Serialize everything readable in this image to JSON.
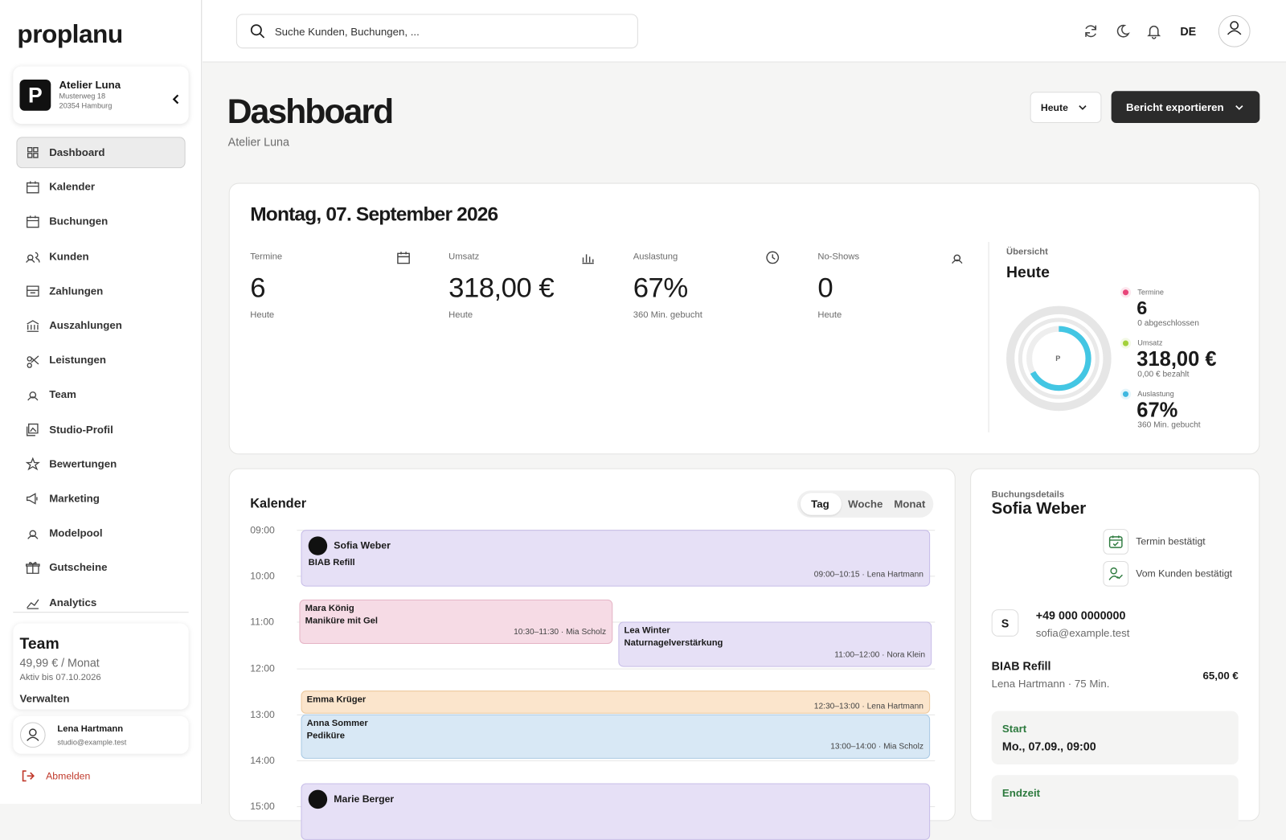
{
  "brand": "proplanu",
  "studio": {
    "logo": "P",
    "name": "Atelier Luna",
    "street": "Musterweg 18",
    "city": "20354 Hamburg"
  },
  "nav": {
    "active": 0,
    "items": [
      "Dashboard",
      "Kalender",
      "Buchungen",
      "Kunden",
      "Zahlungen",
      "Auszahlungen",
      "Leistungen",
      "Team",
      "Studio-Profil",
      "Bewertungen",
      "Marketing",
      "Modelpool",
      "Gutscheine",
      "Analytics"
    ]
  },
  "plan": {
    "title": "Team",
    "price": "49,99 € / Monat",
    "valid": "Aktiv bis 07.10.2026",
    "action": "Verwalten"
  },
  "user": {
    "name": "Lena Hartmann",
    "email": "studio@example.test"
  },
  "logout": "Abmelden",
  "search": "Suche Kunden, Buchungen, ...",
  "lang": "DE",
  "page": {
    "title": "Dashboard",
    "subtitle": "Atelier Luna",
    "period": "Heute",
    "export": "Bericht exportieren"
  },
  "summary": {
    "date": "Montag, 07. September 2026",
    "stats": [
      {
        "label": "Termine",
        "value": "6",
        "note": "Heute"
      },
      {
        "label": "Umsatz",
        "value": "318,00 €",
        "note": "Heute"
      },
      {
        "label": "Auslastung",
        "value": "67%",
        "note": "360 Min. gebucht"
      },
      {
        "label": "No-Shows",
        "value": "0",
        "note": "Heute"
      }
    ]
  },
  "overview": {
    "label": "Übersicht",
    "title": "Heute",
    "center": "P",
    "items": [
      {
        "label": "Termine",
        "value": "6",
        "note": "0 abgeschlossen"
      },
      {
        "label": "Umsatz",
        "value": "318,00 €",
        "note": "0,00 € bezahlt"
      },
      {
        "label": "Auslastung",
        "value": "67%",
        "note": "360 Min. gebucht"
      }
    ]
  },
  "calendar": {
    "title": "Kalender",
    "views": [
      "Tag",
      "Woche",
      "Monat"
    ],
    "hours": [
      "09:00",
      "10:00",
      "11:00",
      "12:00",
      "13:00",
      "14:00",
      "15:00"
    ],
    "events": [
      {
        "name": "Sofia Weber",
        "service": "BIAB Refill",
        "meta": "09:00–10:15 · Lena Hartmann"
      },
      {
        "name": "Mara König",
        "service": "Maniküre mit Gel",
        "meta": "10:30–11:30 · Mia Scholz"
      },
      {
        "name": "Lea Winter",
        "service": "Naturnagelverstärkung",
        "meta": "11:00–12:00 · Nora Klein"
      },
      {
        "name": "Emma Krüger",
        "meta": "12:30–13:00 · Lena Hartmann"
      },
      {
        "name": "Anna Sommer",
        "service": "Pediküre",
        "meta": "13:00–14:00 · Mia Scholz"
      },
      {
        "name": "Marie Berger"
      }
    ]
  },
  "booking": {
    "label": "Buchungsdetails",
    "name": "Sofia Weber",
    "status": [
      "Termin bestätigt",
      "Vom Kunden bestätigt"
    ],
    "initial": "S",
    "phone": "+49 000 0000000",
    "email": "sofia@example.test",
    "service": "BIAB Refill",
    "detail": "Lena Hartmann · 75 Min.",
    "price": "65,00 €",
    "start_label": "Start",
    "start": "Mo., 07.09., 09:00",
    "end_label": "Endzeit"
  }
}
